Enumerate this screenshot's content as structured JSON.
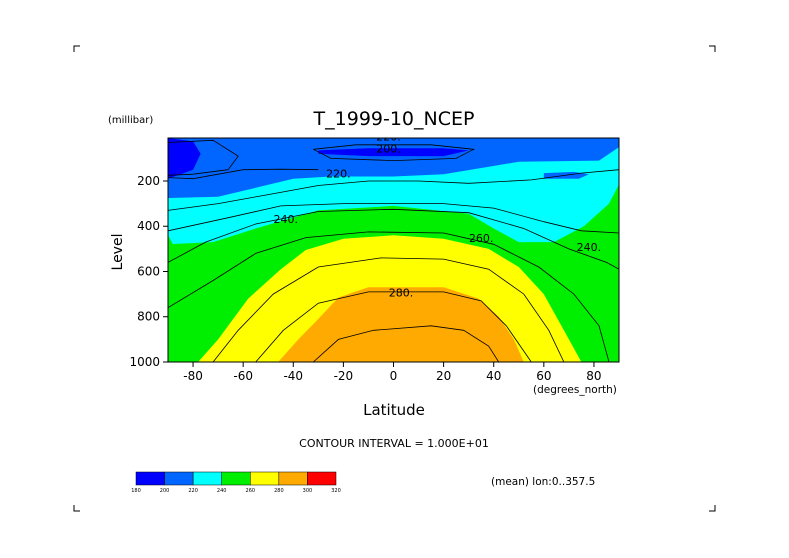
{
  "chart_data": {
    "type": "heatmap",
    "title": "T_1999-10_NCEP",
    "xlabel": "Latitude",
    "ylabel": "Level",
    "x_unit": "(degrees_north)",
    "y_unit": "(millibar)",
    "xlim": [
      -90,
      90
    ],
    "ylim": [
      1000,
      10
    ],
    "y_inverted": true,
    "x_ticks": [
      -80,
      -60,
      -40,
      -20,
      0,
      20,
      40,
      60,
      80
    ],
    "y_ticks": [
      200,
      400,
      600,
      800,
      1000
    ],
    "contour_interval_text": "CONTOUR INTERVAL = 1.000E+01",
    "footnote": "(mean) lon:0..357.5",
    "contour_labels": [
      {
        "text": "200.",
        "lat": -2,
        "lev": 75
      },
      {
        "text": "220.",
        "lat": -2,
        "lev": 20
      },
      {
        "text": "220.",
        "lat": -22,
        "lev": 185
      },
      {
        "text": "240.",
        "lat": -43,
        "lev": 385
      },
      {
        "text": "260.",
        "lat": 35,
        "lev": 470
      },
      {
        "text": "240.",
        "lat": 78,
        "lev": 510
      },
      {
        "text": "280.",
        "lat": 3,
        "lev": 710
      }
    ],
    "colorbar": {
      "levels": [
        180,
        200,
        220,
        240,
        260,
        280,
        300,
        320
      ],
      "colors": [
        "#0000ff",
        "#0066ff",
        "#00ffff",
        "#00ee00",
        "#ffff00",
        "#ffaa00",
        "#ff0000"
      ]
    },
    "bands": [
      {
        "value": 220,
        "color": "#0066ff"
      },
      {
        "value": 240,
        "color": "#00ffff"
      },
      {
        "value": 260,
        "color": "#00ee00"
      },
      {
        "value": 280,
        "color": "#ffff00"
      },
      {
        "value": 300,
        "color": "#ffaa00"
      }
    ],
    "background_color": "#00ee00",
    "regions": [
      {
        "name": "cyan-upper-band",
        "color": "#00ffff",
        "points": [
          [
            -90,
            10
          ],
          [
            90,
            10
          ],
          [
            90,
            215
          ],
          [
            86,
            300
          ],
          [
            76,
            400
          ],
          [
            64,
            470
          ],
          [
            50,
            470
          ],
          [
            40,
            410
          ],
          [
            30,
            345
          ],
          [
            0,
            310
          ],
          [
            -30,
            330
          ],
          [
            -55,
            410
          ],
          [
            -72,
            470
          ],
          [
            -90,
            480
          ]
        ]
      },
      {
        "name": "blue-core-upper",
        "color": "#0066ff",
        "points": [
          [
            -90,
            10
          ],
          [
            90,
            10
          ],
          [
            90,
            50
          ],
          [
            82,
            110
          ],
          [
            50,
            115
          ],
          [
            20,
            170
          ],
          [
            0,
            180
          ],
          [
            -25,
            180
          ],
          [
            -40,
            190
          ],
          [
            -55,
            230
          ],
          [
            -70,
            270
          ],
          [
            -90,
            275
          ]
        ]
      },
      {
        "name": "darkblue-polar",
        "color": "#0000ff",
        "points": [
          [
            -90,
            10
          ],
          [
            -80,
            25
          ],
          [
            -77,
            80
          ],
          [
            -80,
            150
          ],
          [
            -90,
            190
          ]
        ]
      },
      {
        "name": "darkblue-equator",
        "color": "#0000ff",
        "points": [
          [
            -30,
            65
          ],
          [
            -10,
            55
          ],
          [
            20,
            55
          ],
          [
            30,
            65
          ],
          [
            20,
            90
          ],
          [
            -10,
            90
          ],
          [
            -30,
            80
          ]
        ]
      },
      {
        "name": "blue-patch-north",
        "color": "#0066ff",
        "points": [
          [
            60,
            165
          ],
          [
            72,
            160
          ],
          [
            78,
            170
          ],
          [
            74,
            190
          ],
          [
            60,
            190
          ]
        ]
      },
      {
        "name": "yellow-warm",
        "color": "#ffff00",
        "points": [
          [
            -78,
            1000
          ],
          [
            -70,
            900
          ],
          [
            -58,
            720
          ],
          [
            -45,
            590
          ],
          [
            -35,
            505
          ],
          [
            -20,
            455
          ],
          [
            0,
            440
          ],
          [
            20,
            455
          ],
          [
            38,
            500
          ],
          [
            50,
            580
          ],
          [
            60,
            700
          ],
          [
            68,
            860
          ],
          [
            75,
            1000
          ]
        ]
      },
      {
        "name": "orange-warmest",
        "color": "#ffaa00",
        "points": [
          [
            -46,
            1000
          ],
          [
            -38,
            900
          ],
          [
            -30,
            810
          ],
          [
            -22,
            715
          ],
          [
            -10,
            670
          ],
          [
            20,
            670
          ],
          [
            34,
            720
          ],
          [
            42,
            800
          ],
          [
            48,
            900
          ],
          [
            52,
            1000
          ]
        ]
      },
      {
        "name": "green-south-edge",
        "color": "#00ee00",
        "points": [
          [
            -90,
            1000
          ],
          [
            -90,
            440
          ],
          [
            -82,
            600
          ],
          [
            -87,
            780
          ],
          [
            -90,
            870
          ]
        ]
      }
    ],
    "contours": [
      [
        [
          -90,
          185
        ],
        [
          -80,
          190
        ],
        [
          -70,
          170
        ],
        [
          -60,
          150
        ],
        [
          -45,
          148
        ],
        [
          -30,
          150
        ]
      ],
      [
        [
          -90,
          330
        ],
        [
          -70,
          300
        ],
        [
          -50,
          260
        ],
        [
          -30,
          220
        ],
        [
          -10,
          200
        ],
        [
          10,
          200
        ],
        [
          30,
          210
        ],
        [
          55,
          195
        ],
        [
          75,
          165
        ],
        [
          90,
          150
        ]
      ],
      [
        [
          -90,
          420
        ],
        [
          -65,
          360
        ],
        [
          -45,
          310
        ],
        [
          -20,
          300
        ],
        [
          0,
          300
        ],
        [
          20,
          300
        ],
        [
          40,
          320
        ],
        [
          60,
          380
        ],
        [
          75,
          420
        ],
        [
          90,
          430
        ]
      ],
      [
        [
          -90,
          560
        ],
        [
          -75,
          470
        ],
        [
          -55,
          390
        ],
        [
          -30,
          335
        ],
        [
          0,
          325
        ],
        [
          30,
          340
        ],
        [
          52,
          410
        ],
        [
          70,
          500
        ],
        [
          85,
          560
        ],
        [
          90,
          590
        ]
      ],
      [
        [
          -90,
          760
        ],
        [
          -72,
          640
        ],
        [
          -55,
          520
        ],
        [
          -35,
          450
        ],
        [
          -10,
          425
        ],
        [
          20,
          430
        ],
        [
          40,
          480
        ],
        [
          58,
          580
        ],
        [
          72,
          700
        ],
        [
          82,
          840
        ],
        [
          86,
          1000
        ]
      ],
      [
        [
          -72,
          1000
        ],
        [
          -62,
          860
        ],
        [
          -48,
          700
        ],
        [
          -30,
          580
        ],
        [
          -5,
          540
        ],
        [
          20,
          545
        ],
        [
          38,
          590
        ],
        [
          52,
          700
        ],
        [
          62,
          860
        ],
        [
          68,
          1000
        ]
      ],
      [
        [
          -55,
          1000
        ],
        [
          -44,
          860
        ],
        [
          -30,
          740
        ],
        [
          -10,
          690
        ],
        [
          20,
          690
        ],
        [
          35,
          730
        ],
        [
          45,
          840
        ],
        [
          55,
          1000
        ]
      ],
      [
        [
          -32,
          1000
        ],
        [
          -22,
          900
        ],
        [
          -8,
          860
        ],
        [
          15,
          840
        ],
        [
          28,
          860
        ],
        [
          38,
          930
        ],
        [
          42,
          1000
        ]
      ],
      [
        [
          -32,
          60
        ],
        [
          -15,
          40
        ],
        [
          15,
          40
        ],
        [
          32,
          60
        ],
        [
          25,
          100
        ],
        [
          0,
          110
        ],
        [
          -25,
          100
        ],
        [
          -32,
          60
        ]
      ],
      [
        [
          -90,
          30
        ],
        [
          -72,
          20
        ],
        [
          -62,
          90
        ],
        [
          -66,
          150
        ],
        [
          -80,
          170
        ],
        [
          -90,
          175
        ]
      ]
    ]
  }
}
